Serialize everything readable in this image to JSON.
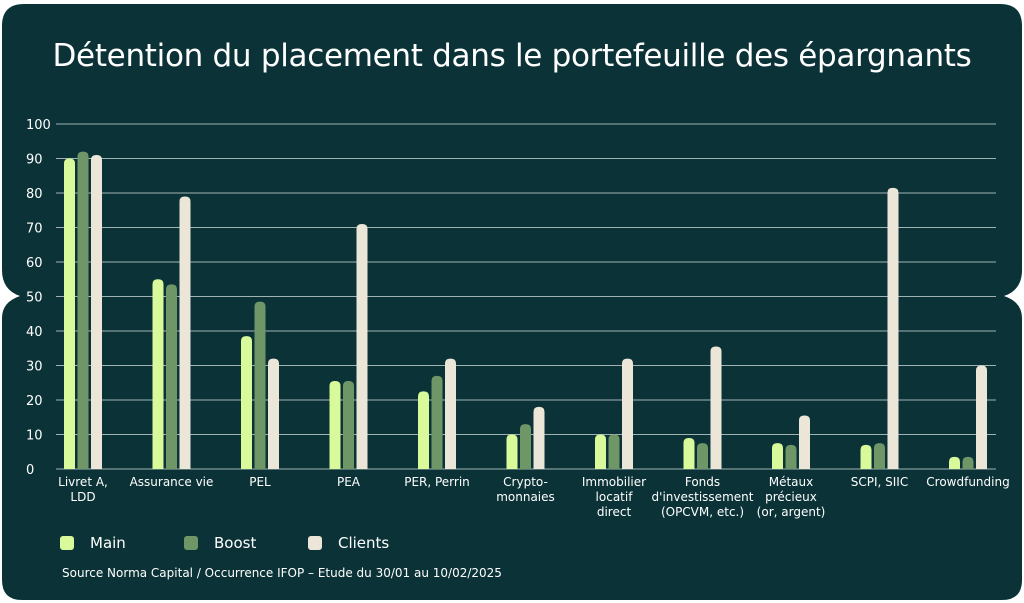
{
  "page": {
    "title": "Détention du placement dans le portefeuille des épargnants",
    "source": "Source Norma Capital / Occurrence IFOP – Etude du 30/01 au 10/02/2025"
  },
  "colors": {
    "background": "#0b3337",
    "grid": "#9fb3b2",
    "text": "#ffffff"
  },
  "legend": [
    {
      "name": "Main",
      "color": "#d9fa9b"
    },
    {
      "name": "Boost",
      "color": "#6f9667"
    },
    {
      "name": "Clients",
      "color": "#ece6d9"
    }
  ],
  "chart_data": {
    "type": "bar",
    "title": "Détention du placement dans le portefeuille des épargnants",
    "ylim": [
      0,
      100
    ],
    "yticks": [
      "0",
      "10",
      "20",
      "30",
      "40",
      "50",
      "60",
      "70",
      "80",
      "90",
      "100"
    ],
    "grid": true,
    "legend_position": "bottom-left",
    "categories": [
      [
        "Livret A,",
        "LDD"
      ],
      [
        "Assurance vie"
      ],
      [
        "PEL"
      ],
      [
        "PEA"
      ],
      [
        "PER, Perrin"
      ],
      [
        "Crypto-",
        "monnaies"
      ],
      [
        "Immobilier",
        "locatif",
        "direct"
      ],
      [
        "Fonds",
        "d'investissement",
        "(OPCVM, etc.)"
      ],
      [
        "Métaux",
        "précieux",
        "(or, argent)"
      ],
      [
        "SCPI, SIIC"
      ],
      [
        "Crowdfunding"
      ]
    ],
    "series": [
      {
        "name": "Main",
        "color": "#d9fa9b",
        "values": [
          90,
          55,
          38.5,
          25.5,
          22.5,
          10,
          10,
          9,
          7.5,
          7,
          3.5
        ]
      },
      {
        "name": "Boost",
        "color": "#6f9667",
        "values": [
          92,
          53.5,
          48.5,
          25.5,
          27,
          13,
          10,
          7.5,
          7,
          7.5,
          3.5
        ]
      },
      {
        "name": "Clients",
        "color": "#ece6d9",
        "values": [
          91,
          79,
          32,
          71,
          32,
          18,
          32,
          35.5,
          15.5,
          81.5,
          30
        ]
      }
    ]
  }
}
